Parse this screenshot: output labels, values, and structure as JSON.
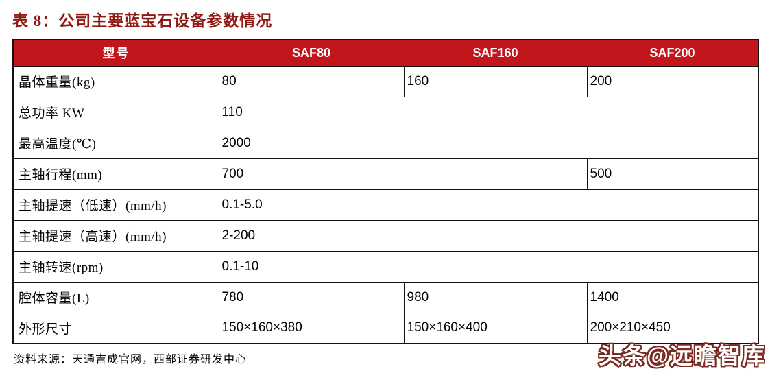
{
  "colors": {
    "header_bg": "#C3161C",
    "title_color": "#8E1A12",
    "watermark_color": "#7B2A22"
  },
  "title": "表 8：公司主要蓝宝石设备参数情况",
  "table": {
    "columns": [
      "型号",
      "SAF80",
      "SAF160",
      "SAF200"
    ],
    "rows": [
      {
        "label": "晶体重量(kg)",
        "cells": [
          "80",
          "160",
          "200"
        ]
      },
      {
        "label": "总功率 KW",
        "cells": [
          "110"
        ]
      },
      {
        "label": "最高温度(℃)",
        "cells": [
          "2000"
        ]
      },
      {
        "label": "主轴行程(mm)",
        "cells": [
          "700",
          "500"
        ]
      },
      {
        "label": "主轴提速（低速）(mm/h)",
        "cells": [
          "0.1-5.0"
        ]
      },
      {
        "label": "主轴提速（高速）(mm/h)",
        "cells": [
          "2-200"
        ]
      },
      {
        "label": "主轴转速(rpm)",
        "cells": [
          "0.1-10"
        ]
      },
      {
        "label": "腔体容量(L)",
        "cells": [
          "780",
          "980",
          "1400"
        ]
      },
      {
        "label": "外形尺寸",
        "cells": [
          "150×160×380",
          "150×160×400",
          "200×210×450"
        ]
      }
    ]
  },
  "footer": {
    "source": "资料来源：天通吉成官网，西部证券研发中心"
  },
  "watermark": {
    "text": "头条@远瞻智库"
  }
}
